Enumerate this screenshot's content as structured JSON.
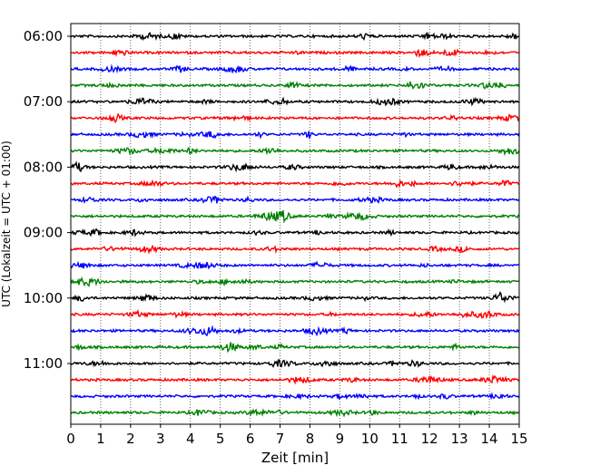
{
  "chart_data": {
    "type": "line",
    "title": "",
    "xlabel": "Zeit  [min]",
    "ylabel": "UTC (Lokalzeit = UTC + 01:00)",
    "xlim": [
      0,
      15
    ],
    "x_ticks": [
      0,
      1,
      2,
      3,
      4,
      5,
      6,
      7,
      8,
      9,
      10,
      11,
      12,
      13,
      14,
      15
    ],
    "x_tick_labels": [
      "0",
      "1",
      "2",
      "3",
      "4",
      "5",
      "6",
      "7",
      "8",
      "9",
      "10",
      "11",
      "12",
      "13",
      "14",
      "15"
    ],
    "hour_labels": [
      "06:00",
      "07:00",
      "08:00",
      "09:00",
      "10:00",
      "11:00"
    ],
    "trace_start": "06:00",
    "trace_interval_min": 15,
    "trace_count": 24,
    "trace_colors": [
      "#000000",
      "#ff0000",
      "#0000ff",
      "#008000"
    ],
    "grid": "vertical dotted",
    "legend": "none"
  }
}
